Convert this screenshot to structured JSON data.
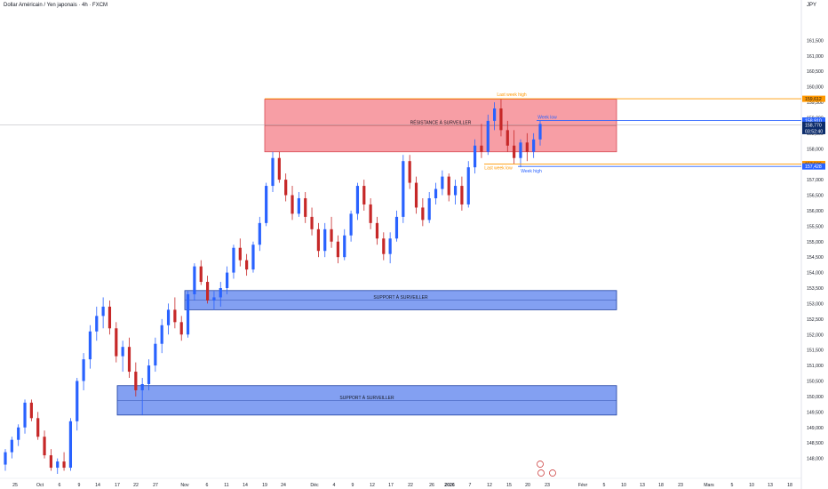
{
  "header": {
    "symbol_title": "Dollar Américain / Yen japonais · 4h · FXCM",
    "currency": "JPY"
  },
  "colors": {
    "up": "#2962ff",
    "down": "#c62828",
    "resistance_fill": "#f47e87",
    "support_fill": "#6d8ff0",
    "orange": "#ff9800",
    "blue_line": "#2962ff",
    "navy": "#0d2c6b"
  },
  "chart_data": {
    "type": "candlestick",
    "ylim": [
      147.5,
      162.4
    ],
    "y_ticks": [
      "148,000",
      "148,500",
      "149,000",
      "149,500",
      "150,000",
      "150,500",
      "151,000",
      "151,500",
      "152,000",
      "152,500",
      "153,000",
      "153,500",
      "154,000",
      "154,500",
      "155,000",
      "155,500",
      "156,000",
      "156,500",
      "157,000",
      "157,500",
      "158,000",
      "158,500",
      "159,000",
      "159,500",
      "160,000",
      "160,500",
      "161,000",
      "161,500"
    ],
    "x_ticks": [
      "25",
      "Oct",
      "6",
      "9",
      "14",
      "17",
      "22",
      "27",
      "Nov",
      "6",
      "11",
      "14",
      "19",
      "24",
      "Déc",
      "4",
      "9",
      "12",
      "17",
      "22",
      "26",
      "2026",
      "7",
      "12",
      "15",
      "20",
      "23",
      "Févr",
      "5",
      "10",
      "13",
      "18",
      "23",
      "Mars",
      "5",
      "10",
      "13",
      "18"
    ],
    "zones": [
      {
        "label": "RÉSISTANCE À SURVEILLER",
        "y_low": 157.9,
        "y_high": 159.6,
        "x_start": "19",
        "x_end": "10"
      },
      {
        "label": "SUPPORT À SURVEILLER",
        "y_low": 152.8,
        "y_high": 153.42,
        "x_start": "Nov",
        "x_end": "10"
      },
      {
        "label": "SUPPORT À SURVEILLER",
        "y_low": 149.4,
        "y_high": 150.35,
        "x_start": "17",
        "x_end": "10"
      }
    ],
    "lines": [
      {
        "label": "Last week high",
        "price": 159.612,
        "price_label": "159,612",
        "color": "orange"
      },
      {
        "label": "Week low",
        "price": 158.91,
        "price_label": "158,910",
        "color": "blue"
      },
      {
        "label": "Last week low",
        "price": 157.506,
        "price_label": "157,506",
        "color": "orange"
      },
      {
        "label": "Week high",
        "price": 157.428,
        "price_label": "157,428",
        "color": "blue"
      }
    ],
    "current_price": {
      "value": 158.77,
      "label": "158,770",
      "countdown": "03:52:40"
    },
    "candles": [
      {
        "o": 147.8,
        "h": 148.3,
        "l": 147.6,
        "c": 148.2
      },
      {
        "o": 148.2,
        "h": 148.7,
        "l": 148.0,
        "c": 148.6
      },
      {
        "o": 148.6,
        "h": 149.1,
        "l": 148.4,
        "c": 149.0
      },
      {
        "o": 149.0,
        "h": 149.9,
        "l": 148.8,
        "c": 149.8
      },
      {
        "o": 149.8,
        "h": 149.9,
        "l": 149.2,
        "c": 149.3
      },
      {
        "o": 149.3,
        "h": 149.5,
        "l": 148.6,
        "c": 148.7
      },
      {
        "o": 148.7,
        "h": 148.9,
        "l": 148.0,
        "c": 148.1
      },
      {
        "o": 148.1,
        "h": 148.3,
        "l": 147.6,
        "c": 147.7
      },
      {
        "o": 147.7,
        "h": 148.0,
        "l": 147.5,
        "c": 147.9
      },
      {
        "o": 147.9,
        "h": 148.2,
        "l": 147.6,
        "c": 147.7
      },
      {
        "o": 147.7,
        "h": 149.3,
        "l": 147.6,
        "c": 149.2
      },
      {
        "o": 149.2,
        "h": 150.6,
        "l": 148.9,
        "c": 150.5
      },
      {
        "o": 150.5,
        "h": 151.4,
        "l": 150.2,
        "c": 151.2
      },
      {
        "o": 151.2,
        "h": 152.3,
        "l": 150.9,
        "c": 152.1
      },
      {
        "o": 152.1,
        "h": 152.9,
        "l": 151.8,
        "c": 152.6
      },
      {
        "o": 152.6,
        "h": 153.2,
        "l": 152.2,
        "c": 152.9
      },
      {
        "o": 152.9,
        "h": 153.1,
        "l": 152.0,
        "c": 152.2
      },
      {
        "o": 152.2,
        "h": 152.4,
        "l": 151.1,
        "c": 151.3
      },
      {
        "o": 151.3,
        "h": 151.8,
        "l": 150.8,
        "c": 151.6
      },
      {
        "o": 151.6,
        "h": 151.9,
        "l": 150.6,
        "c": 150.8
      },
      {
        "o": 150.8,
        "h": 151.1,
        "l": 150.0,
        "c": 150.2
      },
      {
        "o": 150.2,
        "h": 150.6,
        "l": 149.4,
        "c": 150.4
      },
      {
        "o": 150.4,
        "h": 151.2,
        "l": 150.2,
        "c": 151.0
      },
      {
        "o": 151.0,
        "h": 151.9,
        "l": 150.8,
        "c": 151.7
      },
      {
        "o": 151.7,
        "h": 152.5,
        "l": 151.4,
        "c": 152.3
      },
      {
        "o": 152.3,
        "h": 153.0,
        "l": 152.0,
        "c": 152.8
      },
      {
        "o": 152.8,
        "h": 153.2,
        "l": 152.2,
        "c": 152.4
      },
      {
        "o": 152.4,
        "h": 152.6,
        "l": 151.8,
        "c": 152.0
      },
      {
        "o": 152.0,
        "h": 153.4,
        "l": 151.9,
        "c": 153.3
      },
      {
        "o": 153.3,
        "h": 154.3,
        "l": 153.1,
        "c": 154.2
      },
      {
        "o": 154.2,
        "h": 154.4,
        "l": 153.6,
        "c": 153.7
      },
      {
        "o": 153.7,
        "h": 153.9,
        "l": 153.0,
        "c": 153.1
      },
      {
        "o": 153.1,
        "h": 153.4,
        "l": 152.8,
        "c": 153.2
      },
      {
        "o": 153.2,
        "h": 153.7,
        "l": 152.9,
        "c": 153.5
      },
      {
        "o": 153.5,
        "h": 154.2,
        "l": 153.3,
        "c": 154.0
      },
      {
        "o": 154.0,
        "h": 154.9,
        "l": 153.8,
        "c": 154.8
      },
      {
        "o": 154.8,
        "h": 155.1,
        "l": 154.2,
        "c": 154.4
      },
      {
        "o": 154.4,
        "h": 154.6,
        "l": 153.9,
        "c": 154.1
      },
      {
        "o": 154.1,
        "h": 155.0,
        "l": 154.0,
        "c": 154.9
      },
      {
        "o": 154.9,
        "h": 155.8,
        "l": 154.7,
        "c": 155.6
      },
      {
        "o": 155.6,
        "h": 156.9,
        "l": 155.5,
        "c": 156.8
      },
      {
        "o": 156.8,
        "h": 157.9,
        "l": 156.6,
        "c": 157.7
      },
      {
        "o": 157.7,
        "h": 157.9,
        "l": 156.9,
        "c": 157.0
      },
      {
        "o": 157.0,
        "h": 157.2,
        "l": 156.3,
        "c": 156.5
      },
      {
        "o": 156.5,
        "h": 156.8,
        "l": 155.7,
        "c": 155.9
      },
      {
        "o": 155.9,
        "h": 156.6,
        "l": 155.8,
        "c": 156.4
      },
      {
        "o": 156.4,
        "h": 156.6,
        "l": 155.6,
        "c": 155.8
      },
      {
        "o": 155.8,
        "h": 156.1,
        "l": 155.2,
        "c": 155.4
      },
      {
        "o": 155.4,
        "h": 155.6,
        "l": 154.5,
        "c": 154.7
      },
      {
        "o": 154.7,
        "h": 155.6,
        "l": 154.5,
        "c": 155.4
      },
      {
        "o": 155.4,
        "h": 155.8,
        "l": 154.8,
        "c": 155.0
      },
      {
        "o": 155.0,
        "h": 155.2,
        "l": 154.3,
        "c": 154.5
      },
      {
        "o": 154.5,
        "h": 155.4,
        "l": 154.4,
        "c": 155.2
      },
      {
        "o": 155.2,
        "h": 156.0,
        "l": 155.0,
        "c": 155.9
      },
      {
        "o": 155.9,
        "h": 156.9,
        "l": 155.7,
        "c": 156.8
      },
      {
        "o": 156.8,
        "h": 157.0,
        "l": 156.0,
        "c": 156.2
      },
      {
        "o": 156.2,
        "h": 156.4,
        "l": 155.4,
        "c": 155.6
      },
      {
        "o": 155.6,
        "h": 155.8,
        "l": 154.9,
        "c": 155.1
      },
      {
        "o": 155.1,
        "h": 155.3,
        "l": 154.4,
        "c": 154.6
      },
      {
        "o": 154.6,
        "h": 155.3,
        "l": 154.3,
        "c": 155.1
      },
      {
        "o": 155.1,
        "h": 156.0,
        "l": 155.0,
        "c": 155.8
      },
      {
        "o": 155.8,
        "h": 157.8,
        "l": 155.6,
        "c": 157.6
      },
      {
        "o": 157.6,
        "h": 157.8,
        "l": 156.7,
        "c": 156.9
      },
      {
        "o": 156.9,
        "h": 157.1,
        "l": 155.9,
        "c": 156.1
      },
      {
        "o": 156.1,
        "h": 156.4,
        "l": 155.5,
        "c": 155.7
      },
      {
        "o": 155.7,
        "h": 156.6,
        "l": 155.6,
        "c": 156.4
      },
      {
        "o": 156.4,
        "h": 156.9,
        "l": 156.2,
        "c": 156.7
      },
      {
        "o": 156.7,
        "h": 157.3,
        "l": 156.5,
        "c": 157.1
      },
      {
        "o": 157.1,
        "h": 157.2,
        "l": 156.3,
        "c": 156.5
      },
      {
        "o": 156.5,
        "h": 157.0,
        "l": 156.2,
        "c": 156.8
      },
      {
        "o": 156.8,
        "h": 157.1,
        "l": 156.0,
        "c": 156.2
      },
      {
        "o": 156.2,
        "h": 157.6,
        "l": 156.1,
        "c": 157.4
      },
      {
        "o": 157.4,
        "h": 158.3,
        "l": 157.2,
        "c": 158.1
      },
      {
        "o": 158.1,
        "h": 158.8,
        "l": 157.7,
        "c": 157.9
      },
      {
        "o": 157.9,
        "h": 159.1,
        "l": 157.8,
        "c": 158.9
      },
      {
        "o": 158.9,
        "h": 159.5,
        "l": 158.6,
        "c": 159.3
      },
      {
        "o": 159.3,
        "h": 159.6,
        "l": 158.4,
        "c": 158.6
      },
      {
        "o": 158.6,
        "h": 158.9,
        "l": 157.9,
        "c": 158.1
      },
      {
        "o": 158.1,
        "h": 158.6,
        "l": 157.5,
        "c": 157.7
      },
      {
        "o": 157.7,
        "h": 158.3,
        "l": 157.4,
        "c": 158.2
      },
      {
        "o": 158.2,
        "h": 158.5,
        "l": 157.6,
        "c": 157.9
      },
      {
        "o": 157.9,
        "h": 158.5,
        "l": 157.7,
        "c": 158.3
      },
      {
        "o": 158.3,
        "h": 158.9,
        "l": 158.1,
        "c": 158.8
      }
    ]
  }
}
